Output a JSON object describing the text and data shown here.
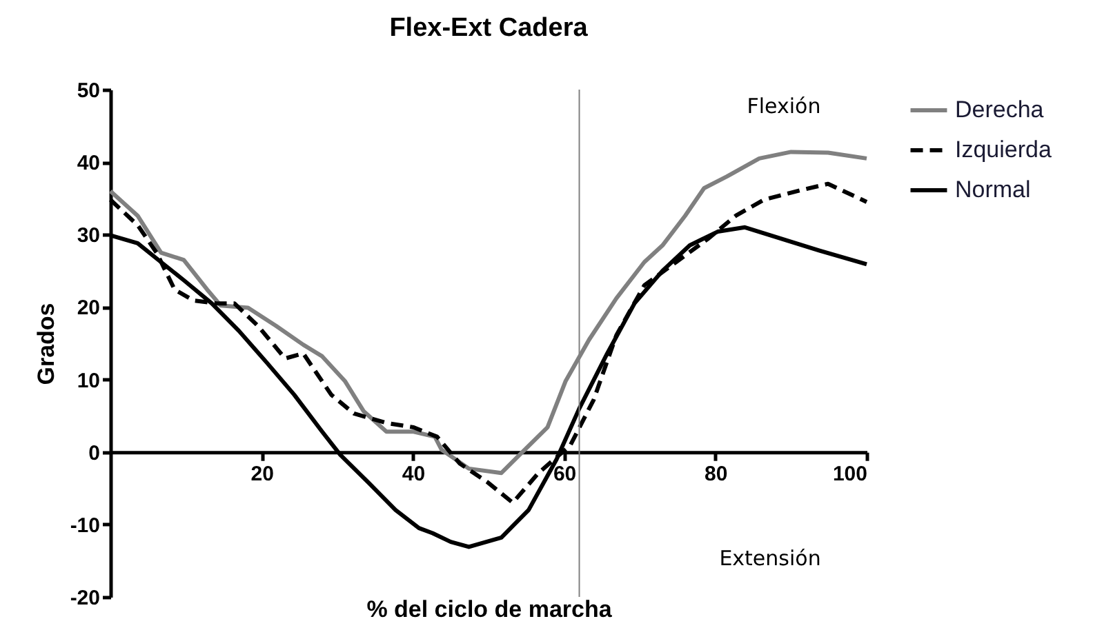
{
  "chart_data": {
    "type": "line",
    "title": "Flex-Ext Cadera",
    "xlabel": "% del ciclo de marcha",
    "ylabel": "Grados",
    "xlim": [
      0,
      100
    ],
    "xticks": [
      20,
      40,
      60,
      80,
      100
    ],
    "ylim": [
      -20,
      50
    ],
    "yticks": [
      -20,
      -10,
      0,
      10,
      20,
      30,
      40,
      50
    ],
    "legend": "right",
    "grid": false,
    "marker": "none",
    "annotations": [
      "Flexión",
      "Extensión"
    ],
    "ref_lines": [
      {
        "axis": "x",
        "value": 62,
        "color": "#808080"
      }
    ],
    "series": [
      {
        "name": "Derecha",
        "color": "#808080",
        "line_style": "solid",
        "x": [
          0,
          3.6,
          6.7,
          9.7,
          12.8,
          14.6,
          18.2,
          21.9,
          25.5,
          28,
          31,
          33.5,
          36.5,
          40.1,
          42.9,
          43.8,
          47.4,
          51.7,
          54.1,
          57.8,
          60.2,
          63.3,
          66.9,
          70.6,
          73,
          76,
          78.5,
          81.5,
          85.8,
          90,
          94.9,
          100
        ],
        "values": [
          36,
          32.6,
          27.5,
          26.5,
          22.4,
          20.2,
          19.9,
          17.4,
          14.8,
          13.2,
          9.8,
          5.6,
          2.8,
          2.8,
          2.1,
          0.3,
          -2.3,
          -2.9,
          -0.4,
          3.4,
          9.8,
          15.5,
          21.2,
          26.2,
          28.5,
          32.6,
          36.4,
          38,
          40.5,
          41.4,
          41.3,
          40.5
        ]
      },
      {
        "name": "Izquierda",
        "color": "#000000",
        "line_style": "dashed",
        "x": [
          0,
          3.6,
          6.1,
          8.5,
          11,
          14,
          16.4,
          19.5,
          23.1,
          25.5,
          29.2,
          32.2,
          36.5,
          40.1,
          43.2,
          46.2,
          49.9,
          53.2,
          56.6,
          60.8,
          63.9,
          66.9,
          70.6,
          74.8,
          79,
          82.7,
          86.4,
          91.2,
          94.9,
          100
        ],
        "values": [
          34.8,
          31.3,
          27.5,
          22.4,
          20.9,
          20.5,
          20.5,
          17.4,
          12.9,
          13.6,
          7.9,
          5.3,
          4,
          3.4,
          2.1,
          -1.6,
          -4.2,
          -7,
          -2.9,
          0.9,
          7.2,
          16.1,
          23,
          26.2,
          29.4,
          32.6,
          34.8,
          36.1,
          37,
          34.5
        ]
      },
      {
        "name": "Normal",
        "color": "#000000",
        "line_style": "solid",
        "x": [
          0,
          3.6,
          6.7,
          9.7,
          13.4,
          17,
          20.7,
          24.3,
          28,
          30.4,
          34.1,
          37.7,
          40.8,
          42.6,
          45,
          47.4,
          51.7,
          55.3,
          59,
          62,
          65.7,
          69.3,
          73,
          76.6,
          80.3,
          83.9,
          88.8,
          93.7,
          100
        ],
        "values": [
          29.9,
          28.8,
          26.2,
          23.7,
          20.5,
          16.7,
          12.3,
          7.9,
          2.8,
          -0.4,
          -4.2,
          -8,
          -10.5,
          -11.2,
          -12.4,
          -13.1,
          -11.8,
          -8,
          -1,
          6,
          13.6,
          20.5,
          25,
          28.5,
          30.4,
          31,
          29.4,
          27.8,
          25.9
        ]
      }
    ]
  }
}
